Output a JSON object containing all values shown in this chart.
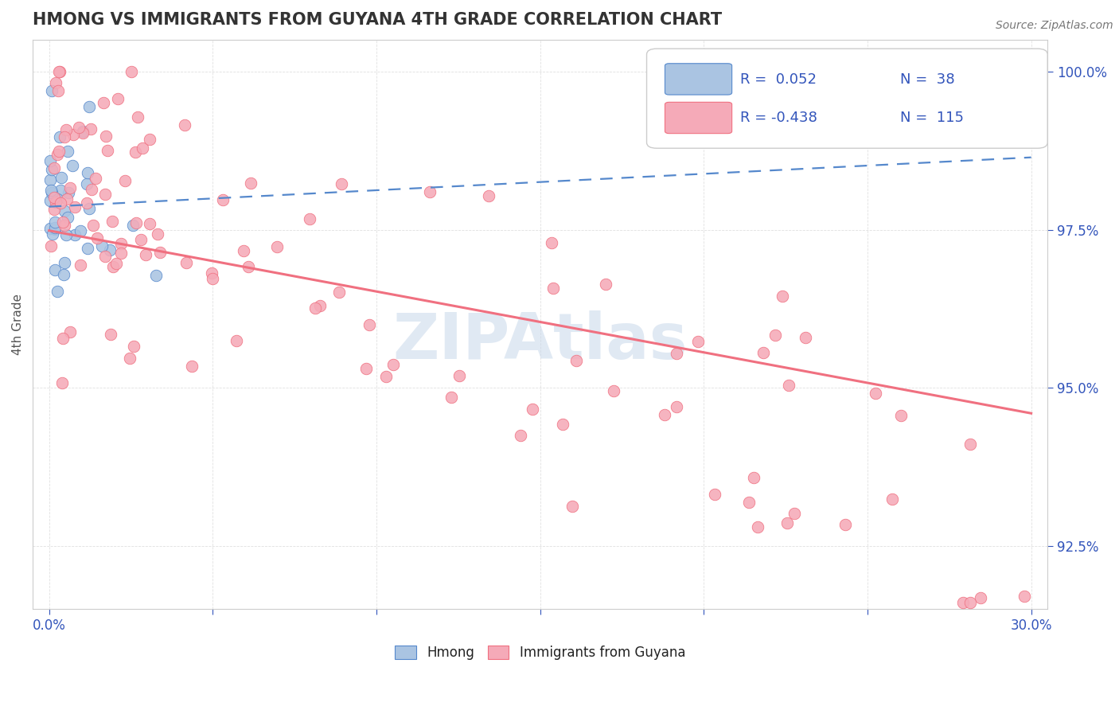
{
  "title": "HMONG VS IMMIGRANTS FROM GUYANA 4TH GRADE CORRELATION CHART",
  "source_text": "Source: ZipAtlas.com",
  "ylabel": "4th Grade",
  "watermark": "ZIPAtlas",
  "xlim": [
    -0.005,
    0.305
  ],
  "ylim": [
    0.915,
    1.005
  ],
  "yticks": [
    0.925,
    0.95,
    0.975,
    1.0
  ],
  "ytick_labels": [
    "92.5%",
    "95.0%",
    "97.5%",
    "100.0%"
  ],
  "xtick_positions": [
    0.0,
    0.05,
    0.1,
    0.15,
    0.2,
    0.25,
    0.3
  ],
  "color_blue": "#aac4e2",
  "color_pink": "#f5aab8",
  "line_blue": "#5588cc",
  "line_pink": "#f07080",
  "R_blue": 0.052,
  "N_blue": 38,
  "R_pink": -0.438,
  "N_pink": 115,
  "legend_R_color": "#3355bb",
  "title_color": "#333333",
  "grid_color": "#dddddd",
  "watermark_color": "#c8d8ea"
}
